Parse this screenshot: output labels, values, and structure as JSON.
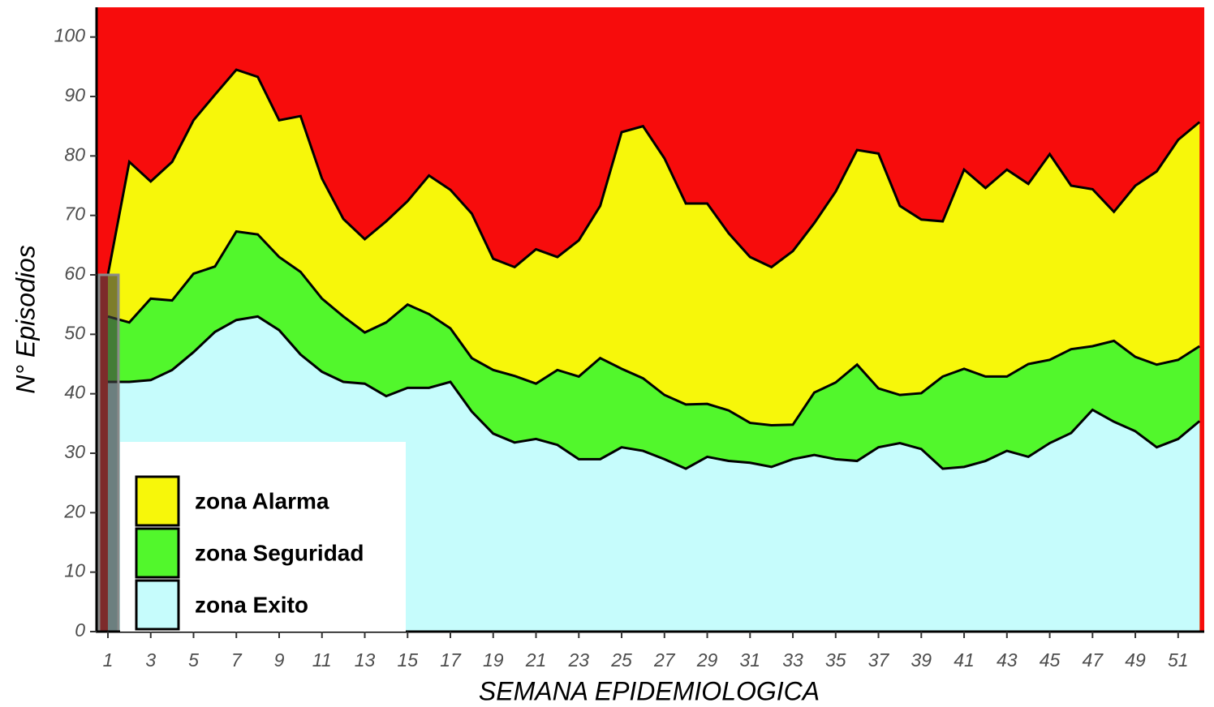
{
  "chart_data": {
    "type": "area",
    "x_label": "SEMANA EPIDEMIOLOGICA",
    "y_label": "N° Episodios",
    "background_color": "#f70c0c",
    "x": [
      1,
      2,
      3,
      4,
      5,
      6,
      7,
      8,
      9,
      10,
      11,
      12,
      13,
      14,
      15,
      16,
      17,
      18,
      19,
      20,
      21,
      22,
      23,
      24,
      25,
      26,
      27,
      28,
      29,
      30,
      31,
      32,
      33,
      34,
      35,
      36,
      37,
      38,
      39,
      40,
      41,
      42,
      43,
      44,
      45,
      46,
      47,
      48,
      49,
      50,
      51,
      52
    ],
    "series": [
      {
        "name": "zona Alarma",
        "color": "#f7f70a",
        "values": [
          60,
          79,
          75.7,
          79,
          86,
          90.3,
          94.5,
          93.3,
          86,
          86.7,
          76.2,
          69.4,
          66,
          69,
          72.4,
          76.7,
          74.3,
          70.3,
          62.7,
          61.3,
          64.3,
          63,
          65.8,
          71.6,
          84,
          85,
          79.6,
          72,
          72,
          67,
          63,
          61.3,
          64,
          68.7,
          74,
          81,
          80.4,
          71.6,
          69.3,
          69,
          77.7,
          74.6,
          77.7,
          75.3,
          80.3,
          75,
          74.4,
          70.6,
          75,
          77.4,
          82.7,
          85.7
        ]
      },
      {
        "name": "zona Seguridad",
        "color": "#52f72c",
        "values": [
          53,
          52,
          56,
          55.7,
          60.2,
          61.4,
          67.3,
          66.8,
          63,
          60.5,
          56,
          53,
          50.3,
          52,
          55,
          53.4,
          51,
          46,
          44,
          43,
          41.7,
          44,
          42.9,
          46,
          44.2,
          42.6,
          39.8,
          38.2,
          38.3,
          37.2,
          35.1,
          34.7,
          34.8,
          40.2,
          41.9,
          44.9,
          40.9,
          39.8,
          40.1,
          42.9,
          44.2,
          42.9,
          42.9,
          45,
          45.7,
          47.5,
          48,
          48.9,
          46.2,
          44.9,
          45.7,
          48
        ]
      },
      {
        "name": "zona Exito",
        "color": "#c6fcfc",
        "values": [
          42,
          42,
          42.3,
          44,
          47,
          50.4,
          52.4,
          53,
          50.7,
          46.6,
          43.7,
          42,
          41.7,
          39.6,
          41,
          41,
          42,
          37,
          33.3,
          31.8,
          32.4,
          31.4,
          29,
          29,
          31,
          30.4,
          29,
          27.4,
          29.4,
          28.7,
          28.4,
          27.7,
          29,
          29.7,
          29,
          28.7,
          31,
          31.7,
          30.7,
          27.4,
          27.7,
          28.7,
          30.4,
          29.4,
          31.7,
          33.4,
          37.3,
          35.3,
          33.7,
          31,
          32.4,
          35.4
        ]
      }
    ],
    "bars": {
      "x": [
        1
      ],
      "values": [
        60
      ]
    },
    "xlim": [
      0.47,
      52.22
    ],
    "ylim": [
      0,
      105
    ],
    "xticks": [
      1,
      3,
      5,
      7,
      9,
      11,
      13,
      15,
      17,
      19,
      21,
      23,
      25,
      27,
      29,
      31,
      33,
      35,
      37,
      39,
      41,
      43,
      45,
      47,
      49,
      51
    ],
    "yticks": [
      0,
      10,
      20,
      30,
      40,
      50,
      60,
      70,
      80,
      90,
      100
    ],
    "legend": "bottom-left",
    "grid": false
  }
}
